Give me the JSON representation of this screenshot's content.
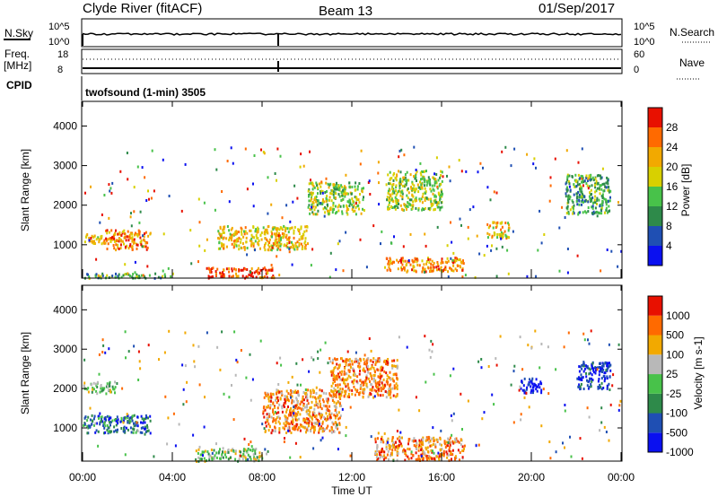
{
  "header": {
    "radar": "Clyde River (fitACF)",
    "beam": "Beam 13",
    "date": "01/Sep/2017"
  },
  "status_panels": {
    "nsky_label": "N.Sky",
    "nsky_ticks": [
      "10^5",
      "10^0"
    ],
    "nsearch_label": "N.Search",
    "nsearch_ticks": [
      "10^5",
      "10^0"
    ],
    "freq_label": "Freq.",
    "freq_unit": "[MHz]",
    "freq_ticks": [
      "18",
      "8"
    ],
    "nave_label": "Nave",
    "nave_ticks": [
      "60",
      "0"
    ],
    "cpid_label": "CPID",
    "cpid_text": "twofsound (1-min) 3505"
  },
  "chart_data": [
    {
      "type": "heatmap",
      "title": "",
      "ylabel": "Slant Range [km]",
      "xlabel": "",
      "ylim": [
        180,
        4600
      ],
      "xlim_hours": [
        0,
        24
      ],
      "yticks": [
        "1000",
        "2000",
        "3000",
        "4000"
      ],
      "colorbar": {
        "label": "Power [dB]",
        "ticks": [
          "28",
          "24",
          "20",
          "16",
          "12",
          "8",
          "4"
        ],
        "colors": [
          "#0a10f0",
          "#1f4fb3",
          "#2e8a4a",
          "#48c24a",
          "#d8d000",
          "#f2a900",
          "#ff6a00",
          "#e81000"
        ]
      },
      "blobs_hours_km_class": [
        [
          0.0,
          1.0,
          1050,
          1300,
          5
        ],
        [
          1.0,
          3.0,
          900,
          1400,
          6
        ],
        [
          0.0,
          4.0,
          180,
          300,
          3
        ],
        [
          5.5,
          8.5,
          180,
          450,
          7
        ],
        [
          6.0,
          10.0,
          900,
          1500,
          5
        ],
        [
          10.0,
          12.5,
          1800,
          2600,
          4
        ],
        [
          13.5,
          16.0,
          1900,
          2900,
          4
        ],
        [
          13.5,
          17.0,
          350,
          700,
          6
        ],
        [
          18.0,
          19.0,
          1200,
          1600,
          5
        ],
        [
          21.5,
          23.5,
          1800,
          2800,
          3
        ]
      ]
    },
    {
      "type": "heatmap",
      "title": "",
      "ylabel": "Slant Range [km]",
      "xlabel": "Time UT",
      "ylim": [
        180,
        4600
      ],
      "xlim_hours": [
        0,
        24
      ],
      "xticks": [
        "00:00",
        "04:00",
        "08:00",
        "12:00",
        "16:00",
        "20:00",
        "00:00"
      ],
      "yticks": [
        "1000",
        "2000",
        "3000",
        "4000"
      ],
      "colorbar": {
        "label": "Velocity [m s-1]",
        "ticks": [
          "1000",
          "500",
          "100",
          "25",
          "-25",
          "-100",
          "-500",
          "-1000"
        ],
        "colors": [
          "#0a10f0",
          "#1f4fb3",
          "#2e8a4a",
          "#48c24a",
          "#b8b8b8",
          "#f2a900",
          "#ff6a00",
          "#e81000"
        ]
      },
      "blobs_hours_km_class": [
        [
          0.0,
          3.0,
          900,
          1350,
          2
        ],
        [
          0.0,
          1.5,
          1900,
          2200,
          4
        ],
        [
          8.0,
          11.5,
          900,
          2000,
          6
        ],
        [
          11.0,
          14.0,
          1800,
          2800,
          6
        ],
        [
          13.0,
          17.0,
          200,
          800,
          6
        ],
        [
          5.0,
          8.0,
          180,
          500,
          4
        ],
        [
          19.5,
          20.5,
          1900,
          2300,
          0
        ],
        [
          22.0,
          23.5,
          2000,
          2700,
          1
        ]
      ]
    }
  ]
}
